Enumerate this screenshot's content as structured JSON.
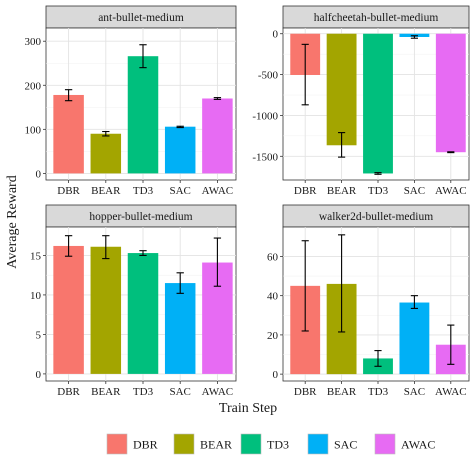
{
  "figure": {
    "ylabel": "Average Reward",
    "xlabel": "Train Step",
    "colors": {
      "DBR": "#F8766D",
      "BEAR": "#A3A500",
      "TD3": "#00BF7D",
      "SAC": "#00B0F6",
      "AWAC": "#E76BF3"
    },
    "legend": [
      "DBR",
      "BEAR",
      "TD3",
      "SAC",
      "AWAC"
    ]
  },
  "chart_data": [
    {
      "type": "bar",
      "title": "ant-bullet-medium",
      "categories": [
        "DBR",
        "BEAR",
        "TD3",
        "SAC",
        "AWAC"
      ],
      "values": [
        178,
        90,
        266,
        106,
        170
      ],
      "err_low": [
        165,
        85,
        240,
        104,
        168
      ],
      "err_high": [
        190,
        95,
        292,
        107,
        172
      ],
      "ylim": [
        -15,
        330
      ],
      "yticks": [
        0,
        100,
        200,
        300
      ],
      "ytick_labels": [
        "0",
        "100",
        "200",
        "300"
      ]
    },
    {
      "type": "bar",
      "title": "halfcheetah-bullet-medium",
      "categories": [
        "DBR",
        "BEAR",
        "TD3",
        "SAC",
        "AWAC"
      ],
      "values": [
        -505,
        -1365,
        -1710,
        -40,
        -1450
      ],
      "err_low": [
        -870,
        -1510,
        -1720,
        -55,
        -1455
      ],
      "err_high": [
        -130,
        -1210,
        -1700,
        -25,
        -1445
      ],
      "ylim": [
        -1790,
        70
      ],
      "yticks": [
        0,
        -500,
        -1000,
        -1500
      ],
      "ytick_labels": [
        "0",
        "-500",
        "-1000",
        "-1500"
      ]
    },
    {
      "type": "bar",
      "title": "hopper-bullet-medium",
      "categories": [
        "DBR",
        "BEAR",
        "TD3",
        "SAC",
        "AWAC"
      ],
      "values": [
        16.2,
        16.1,
        15.3,
        11.5,
        14.1
      ],
      "err_low": [
        14.9,
        14.6,
        15.0,
        10.2,
        11.1
      ],
      "err_high": [
        17.5,
        17.5,
        15.6,
        12.8,
        17.2
      ],
      "ylim": [
        -0.9,
        18.6
      ],
      "yticks": [
        0,
        5,
        10,
        15
      ],
      "ytick_labels": [
        "0",
        "5",
        "10",
        "15"
      ]
    },
    {
      "type": "bar",
      "title": "walker2d-bullet-medium",
      "categories": [
        "DBR",
        "BEAR",
        "TD3",
        "SAC",
        "AWAC"
      ],
      "values": [
        45,
        46,
        8,
        36.5,
        15
      ],
      "err_low": [
        22,
        21.5,
        4,
        33.5,
        5
      ],
      "err_high": [
        68,
        71,
        12,
        40,
        25
      ],
      "ylim": [
        -3.5,
        75
      ],
      "yticks": [
        0,
        20,
        40,
        60
      ],
      "ytick_labels": [
        "0",
        "20",
        "40",
        "60"
      ]
    }
  ]
}
